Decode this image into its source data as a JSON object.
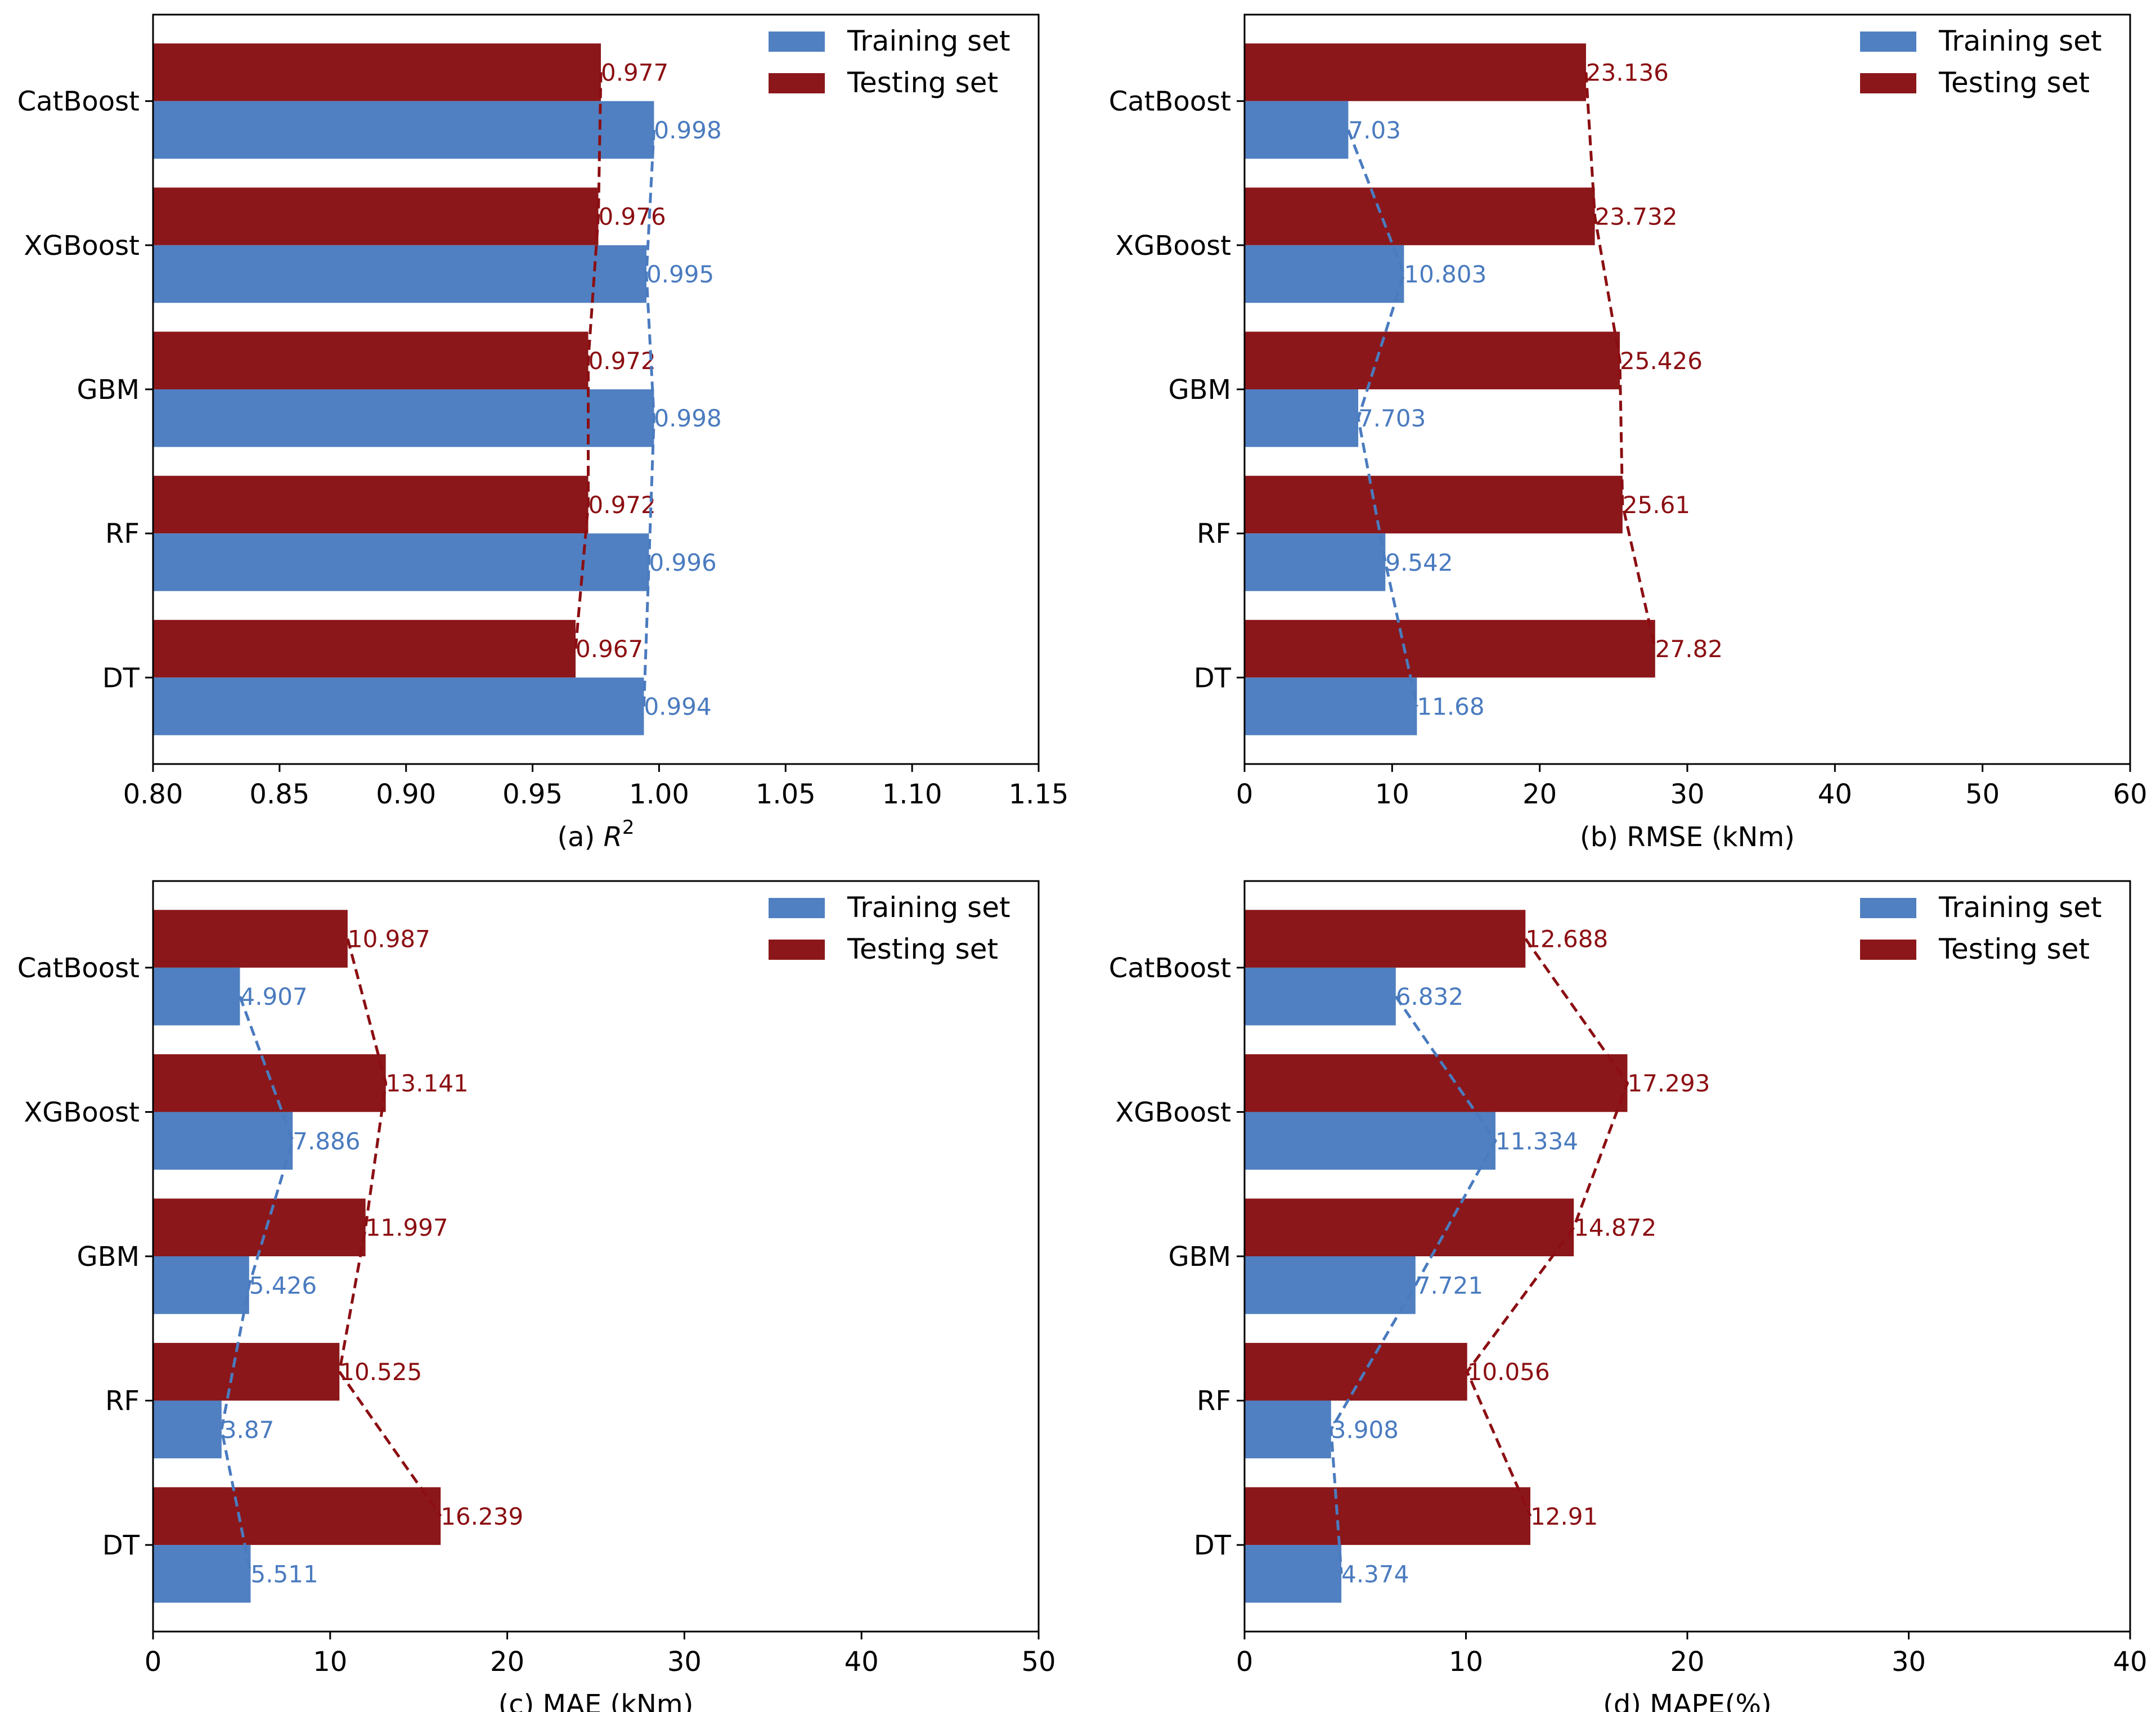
{
  "colors": {
    "training": "#5080C1",
    "testing": "#8B171A",
    "training_label": "#4A7BBF",
    "testing_label": "#8B0E12"
  },
  "legend": {
    "training": "Training set",
    "testing": "Testing set"
  },
  "chart_data": [
    {
      "type": "bar",
      "orientation": "horizontal",
      "xlabel": "(a) ",
      "xlabel_math": "R",
      "xlabel_sup": "2",
      "categories": [
        "CatBoost",
        "XGBoost",
        "GBM",
        "RF",
        "DT"
      ],
      "xlim": [
        0.8,
        1.15
      ],
      "xticks": [
        "0.80",
        "0.85",
        "0.90",
        "0.95",
        "1.00",
        "1.05",
        "1.10",
        "1.15"
      ],
      "series": [
        {
          "name": "Training set",
          "values": [
            0.998,
            0.995,
            0.998,
            0.996,
            0.994
          ],
          "labels": [
            "0.998",
            "0.995",
            "0.998",
            "0.996",
            "0.994"
          ]
        },
        {
          "name": "Testing set",
          "values": [
            0.977,
            0.976,
            0.972,
            0.972,
            0.967
          ],
          "labels": [
            "0.977",
            "0.976",
            "0.972",
            "0.972",
            "0.967"
          ]
        }
      ],
      "legend_position": "top-right"
    },
    {
      "type": "bar",
      "orientation": "horizontal",
      "xlabel": "(b) RMSE (kNm)",
      "categories": [
        "CatBoost",
        "XGBoost",
        "GBM",
        "RF",
        "DT"
      ],
      "xlim": [
        0,
        60
      ],
      "xticks": [
        "0",
        "10",
        "20",
        "30",
        "40",
        "50",
        "60"
      ],
      "series": [
        {
          "name": "Training set",
          "values": [
            7.03,
            10.803,
            7.703,
            9.542,
            11.68
          ],
          "labels": [
            "7.03",
            "10.803",
            "7.703",
            "9.542",
            "11.68"
          ]
        },
        {
          "name": "Testing set",
          "values": [
            23.136,
            23.732,
            25.426,
            25.61,
            27.82
          ],
          "labels": [
            "23.136",
            "23.732",
            "25.426",
            "25.61",
            "27.82"
          ]
        }
      ],
      "legend_position": "top-right"
    },
    {
      "type": "bar",
      "orientation": "horizontal",
      "xlabel": "(c) MAE (kNm)",
      "categories": [
        "CatBoost",
        "XGBoost",
        "GBM",
        "RF",
        "DT"
      ],
      "xlim": [
        0,
        50
      ],
      "xticks": [
        "0",
        "10",
        "20",
        "30",
        "40",
        "50"
      ],
      "series": [
        {
          "name": "Training set",
          "values": [
            4.907,
            7.886,
            5.426,
            3.87,
            5.511
          ],
          "labels": [
            "4.907",
            "7.886",
            "5.426",
            "3.87",
            "5.511"
          ]
        },
        {
          "name": "Testing set",
          "values": [
            10.987,
            13.141,
            11.997,
            10.525,
            16.239
          ],
          "labels": [
            "10.987",
            "13.141",
            "11.997",
            "10.525",
            "16.239"
          ]
        }
      ],
      "legend_position": "top-right"
    },
    {
      "type": "bar",
      "orientation": "horizontal",
      "xlabel": "(d)  MAPE(%)",
      "categories": [
        "CatBoost",
        "XGBoost",
        "GBM",
        "RF",
        "DT"
      ],
      "xlim": [
        0,
        40
      ],
      "xticks": [
        "0",
        "10",
        "20",
        "30",
        "40"
      ],
      "series": [
        {
          "name": "Training set",
          "values": [
            6.832,
            11.334,
            7.721,
            3.908,
            4.374
          ],
          "labels": [
            "6.832",
            "11.334",
            "7.721",
            "3.908",
            "4.374"
          ]
        },
        {
          "name": "Testing set",
          "values": [
            12.688,
            17.293,
            14.872,
            10.056,
            12.91
          ],
          "labels": [
            "12.688",
            "17.293",
            "14.872",
            "10.056",
            "12.91"
          ]
        }
      ],
      "legend_position": "top-right"
    }
  ]
}
